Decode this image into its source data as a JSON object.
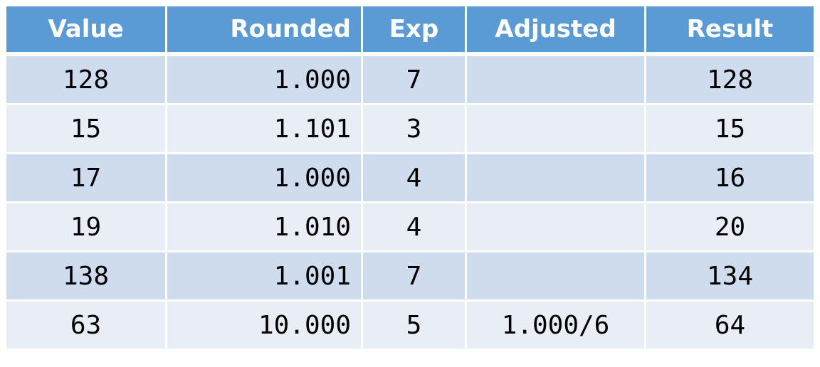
{
  "table": {
    "headers": [
      "Value",
      "Rounded",
      "Exp",
      "Adjusted",
      "Result"
    ],
    "rows": [
      [
        "128",
        "1.000",
        "7",
        "",
        "128"
      ],
      [
        "15",
        "1.101",
        "3",
        "",
        "15"
      ],
      [
        "17",
        "1.000",
        "4",
        "",
        "16"
      ],
      [
        "19",
        "1.010",
        "4",
        "",
        "20"
      ],
      [
        "138",
        "1.001",
        "7",
        "",
        "134"
      ],
      [
        "63",
        "10.000",
        "5",
        "1.000/6",
        "64"
      ]
    ]
  },
  "colors": {
    "header_bg": "#5b9bd5",
    "row_odd_bg": "#cfdcee",
    "row_even_bg": "#e8edf6",
    "header_text": "#ffffff"
  }
}
